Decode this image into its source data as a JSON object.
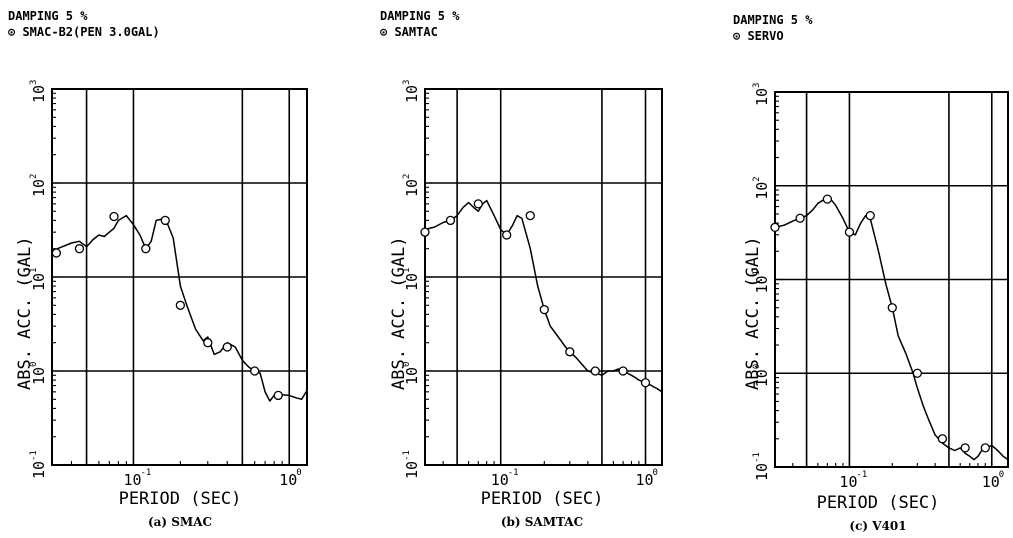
{
  "chart_data": [
    {
      "type": "line",
      "header_line1": "DAMPING 5 %",
      "header_line2": "⊙ SMAC-B2(PEN 3.0GAL)",
      "xlabel": "PERIOD (SEC)",
      "ylabel": "ABS. ACC. (GAL)",
      "caption": "(a) SMAC",
      "x_scale": "log",
      "y_scale": "log",
      "xlim": [
        0.03,
        1.3
      ],
      "ylim": [
        0.1,
        1000
      ],
      "grid": true,
      "x": [
        0.03,
        0.035,
        0.04,
        0.045,
        0.05,
        0.055,
        0.06,
        0.065,
        0.07,
        0.075,
        0.08,
        0.09,
        0.1,
        0.11,
        0.12,
        0.13,
        0.14,
        0.16,
        0.18,
        0.2,
        0.22,
        0.25,
        0.28,
        0.3,
        0.33,
        0.36,
        0.4,
        0.45,
        0.5,
        0.55,
        0.6,
        0.65,
        0.7,
        0.75,
        0.8,
        0.85,
        0.9,
        1.0,
        1.1,
        1.2,
        1.3
      ],
      "y": [
        19,
        21,
        23,
        24,
        21,
        25,
        28,
        27,
        30,
        33,
        40,
        45,
        36,
        28,
        20,
        24,
        40,
        42,
        26,
        8,
        5,
        2.8,
        2.1,
        2.3,
        1.5,
        1.6,
        2.0,
        1.8,
        1.3,
        1.1,
        1.0,
        0.95,
        0.6,
        0.48,
        0.55,
        0.6,
        0.56,
        0.55,
        0.52,
        0.5,
        0.62
      ],
      "markers_x": [
        0.032,
        0.045,
        0.075,
        0.12,
        0.16,
        0.2,
        0.3,
        0.4,
        0.6,
        0.85
      ],
      "markers_y": [
        18,
        20,
        44,
        20,
        40,
        5,
        2.0,
        1.8,
        1.0,
        0.55
      ]
    },
    {
      "type": "line",
      "header_line1": "DAMPING 5 %",
      "header_line2": "⊙ SAMTAC",
      "xlabel": "PERIOD (SEC)",
      "ylabel": "ABS. ACC. (GAL)",
      "caption": "(b) SAMTAC",
      "x_scale": "log",
      "y_scale": "log",
      "xlim": [
        0.03,
        1.3
      ],
      "ylim": [
        0.1,
        1000
      ],
      "grid": true,
      "x": [
        0.03,
        0.035,
        0.04,
        0.045,
        0.05,
        0.055,
        0.06,
        0.065,
        0.07,
        0.075,
        0.08,
        0.09,
        0.1,
        0.11,
        0.12,
        0.13,
        0.14,
        0.16,
        0.18,
        0.2,
        0.22,
        0.25,
        0.28,
        0.3,
        0.33,
        0.36,
        0.4,
        0.45,
        0.5,
        0.55,
        0.6,
        0.65,
        0.7,
        0.75,
        0.8,
        0.85,
        0.9,
        1.0,
        1.1,
        1.2,
        1.3
      ],
      "y": [
        32,
        34,
        38,
        40,
        45,
        55,
        62,
        55,
        50,
        60,
        65,
        45,
        32,
        28,
        35,
        45,
        42,
        20,
        8,
        4.5,
        3.0,
        2.3,
        1.8,
        1.6,
        1.4,
        1.2,
        1.0,
        0.95,
        0.9,
        1.0,
        1.0,
        1.05,
        1.0,
        0.95,
        0.9,
        0.85,
        0.8,
        0.75,
        0.7,
        0.65,
        0.6
      ],
      "markers_x": [
        0.03,
        0.045,
        0.07,
        0.11,
        0.16,
        0.2,
        0.3,
        0.45,
        0.7,
        1.0
      ],
      "markers_y": [
        30,
        40,
        60,
        28,
        45,
        4.5,
        1.6,
        1.0,
        1.0,
        0.75
      ]
    },
    {
      "type": "line",
      "header_line1": "DAMPING 5 %",
      "header_line2": "⊙ SERVO",
      "xlabel": "PERIOD (SEC)",
      "ylabel": "ABS. ACC. (GAL)",
      "caption": "(c) V401",
      "x_scale": "log",
      "y_scale": "log",
      "xlim": [
        0.03,
        1.3
      ],
      "ylim": [
        0.1,
        1000
      ],
      "grid": true,
      "x": [
        0.03,
        0.035,
        0.04,
        0.045,
        0.05,
        0.055,
        0.06,
        0.065,
        0.07,
        0.075,
        0.08,
        0.09,
        0.1,
        0.11,
        0.12,
        0.13,
        0.14,
        0.16,
        0.18,
        0.2,
        0.22,
        0.25,
        0.28,
        0.3,
        0.33,
        0.36,
        0.4,
        0.45,
        0.5,
        0.55,
        0.6,
        0.65,
        0.7,
        0.75,
        0.8,
        0.85,
        0.9,
        1.0,
        1.1,
        1.2,
        1.3
      ],
      "y": [
        36,
        38,
        42,
        45,
        48,
        55,
        65,
        70,
        75,
        70,
        62,
        45,
        32,
        30,
        40,
        48,
        45,
        20,
        9,
        5.0,
        2.5,
        1.6,
        1.0,
        0.7,
        0.45,
        0.32,
        0.22,
        0.18,
        0.16,
        0.15,
        0.16,
        0.14,
        0.13,
        0.12,
        0.13,
        0.15,
        0.16,
        0.17,
        0.15,
        0.13,
        0.12
      ],
      "markers_x": [
        0.03,
        0.045,
        0.07,
        0.1,
        0.14,
        0.2,
        0.3,
        0.45,
        0.65,
        0.9
      ],
      "markers_y": [
        36,
        45,
        72,
        32,
        48,
        5.0,
        1.0,
        0.2,
        0.16,
        0.16
      ]
    }
  ]
}
